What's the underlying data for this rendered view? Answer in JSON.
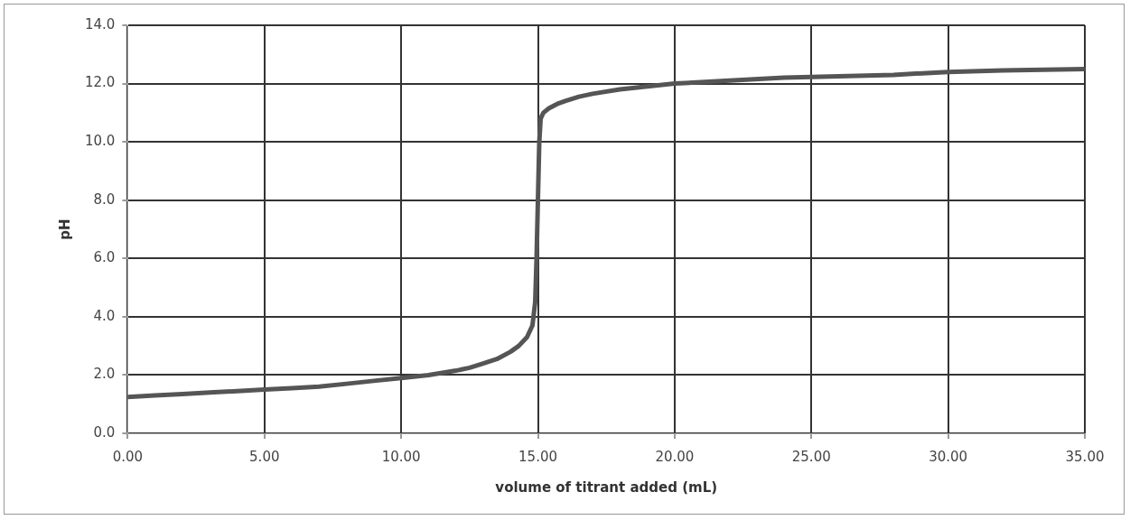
{
  "chart_data": {
    "type": "line",
    "xlabel": "volume of titrant added (mL)",
    "ylabel": "pH",
    "series": [
      {
        "color": "#555555",
        "x": [
          0,
          1,
          2,
          3,
          4,
          5,
          6,
          7,
          8,
          9,
          10,
          11,
          12,
          12.5,
          13,
          13.5,
          14,
          14.3,
          14.6,
          14.8,
          14.9,
          14.95,
          15.0,
          15.05,
          15.1,
          15.2,
          15.4,
          15.7,
          16,
          16.5,
          17,
          18,
          19,
          20,
          22,
          24,
          26,
          28,
          30,
          32,
          35
        ],
        "values": [
          1.25,
          1.3,
          1.35,
          1.4,
          1.45,
          1.5,
          1.55,
          1.6,
          1.7,
          1.8,
          1.9,
          2.0,
          2.15,
          2.25,
          2.4,
          2.55,
          2.8,
          3.0,
          3.3,
          3.7,
          4.5,
          6.0,
          8.0,
          10.0,
          10.8,
          11.0,
          11.15,
          11.3,
          11.4,
          11.55,
          11.65,
          11.8,
          11.9,
          12.0,
          12.1,
          12.2,
          12.25,
          12.3,
          12.4,
          12.45,
          12.5
        ]
      }
    ],
    "xlim": [
      0,
      35
    ],
    "xticks": [
      {
        "value": 0,
        "label": "0.00"
      },
      {
        "value": 5,
        "label": "5.00"
      },
      {
        "value": 10,
        "label": "10.00"
      },
      {
        "value": 15,
        "label": "15.00"
      },
      {
        "value": 20,
        "label": "20.00"
      },
      {
        "value": 25,
        "label": "25.00"
      },
      {
        "value": 30,
        "label": "30.00"
      },
      {
        "value": 35,
        "label": "35.00"
      }
    ],
    "ylim": [
      0,
      14
    ],
    "yticks": [
      {
        "value": 0,
        "label": "0.0"
      },
      {
        "value": 2,
        "label": "2.0"
      },
      {
        "value": 4,
        "label": "4.0"
      },
      {
        "value": 6,
        "label": "6.0"
      },
      {
        "value": 8,
        "label": "8.0"
      },
      {
        "value": 10,
        "label": "10.0"
      },
      {
        "value": 12,
        "label": "12.0"
      },
      {
        "value": 14,
        "label": "14.0"
      }
    ],
    "grid": true,
    "legend": false,
    "marker": "none",
    "line_style": "solid"
  }
}
